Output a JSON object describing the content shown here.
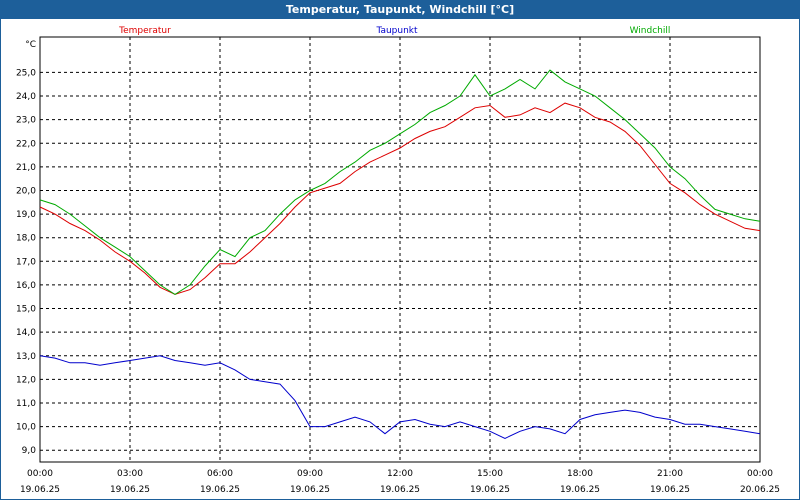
{
  "title": "Temperatur, Taupunkt, Windchill [°C]",
  "chart_data": {
    "type": "line",
    "title": "Temperatur, Taupunkt, Windchill [°C]",
    "ylabel": "°C",
    "xlabel": "",
    "ylim": [
      8.5,
      26.5
    ],
    "yticks": [
      "9,0",
      "10,0",
      "11,0",
      "12,0",
      "13,0",
      "14,0",
      "15,0",
      "16,0",
      "17,0",
      "18,0",
      "19,0",
      "20,0",
      "21,0",
      "22,0",
      "23,0",
      "24,0",
      "25,0"
    ],
    "xlim": [
      0,
      24
    ],
    "xticks": [
      {
        "time": "00:00",
        "date": "19.06.25"
      },
      {
        "time": "03:00",
        "date": "19.06.25"
      },
      {
        "time": "06:00",
        "date": "19.06.25"
      },
      {
        "time": "09:00",
        "date": "19.06.25"
      },
      {
        "time": "12:00",
        "date": "19.06.25"
      },
      {
        "time": "15:00",
        "date": "19.06.25"
      },
      {
        "time": "18:00",
        "date": "19.06.25"
      },
      {
        "time": "21:00",
        "date": "19.06.25"
      },
      {
        "time": "00:00",
        "date": "20.06.25"
      }
    ],
    "grid": true,
    "legend_position": "top",
    "x_hours": [
      0,
      0.5,
      1,
      1.5,
      2,
      2.5,
      3,
      3.5,
      4,
      4.5,
      5,
      5.5,
      6,
      6.5,
      7,
      7.5,
      8,
      8.5,
      9,
      9.5,
      10,
      10.5,
      11,
      11.5,
      12,
      12.5,
      13,
      13.5,
      14,
      14.5,
      15,
      15.5,
      16,
      16.5,
      17,
      17.5,
      18,
      18.5,
      19,
      19.5,
      20,
      20.5,
      21,
      21.5,
      22,
      22.5,
      23,
      23.5,
      24
    ],
    "series": [
      {
        "name": "Temperatur",
        "color": "#dd0000",
        "values": [
          19.3,
          19.0,
          18.6,
          18.3,
          17.9,
          17.4,
          17.0,
          16.5,
          15.9,
          15.6,
          15.8,
          16.3,
          16.9,
          16.9,
          17.4,
          18.0,
          18.6,
          19.3,
          19.9,
          20.1,
          20.3,
          20.8,
          21.2,
          21.5,
          21.8,
          22.2,
          22.5,
          22.7,
          23.1,
          23.5,
          23.6,
          23.1,
          23.2,
          23.5,
          23.3,
          23.7,
          23.5,
          23.1,
          22.9,
          22.5,
          21.9,
          21.1,
          20.3,
          19.9,
          19.4,
          19.0,
          18.7,
          18.4,
          18.3
        ]
      },
      {
        "name": "Taupunkt",
        "color": "#0000cc",
        "values": [
          13.0,
          12.9,
          12.7,
          12.7,
          12.6,
          12.7,
          12.8,
          12.9,
          13.0,
          12.8,
          12.7,
          12.6,
          12.7,
          12.4,
          12.0,
          11.9,
          11.8,
          11.1,
          10.0,
          10.0,
          10.2,
          10.4,
          10.2,
          9.7,
          10.2,
          10.3,
          10.1,
          10.0,
          10.2,
          10.0,
          9.8,
          9.5,
          9.8,
          10.0,
          9.9,
          9.7,
          10.3,
          10.5,
          10.6,
          10.7,
          10.6,
          10.4,
          10.3,
          10.1,
          10.1,
          10.0,
          9.9,
          9.8,
          9.7
        ]
      },
      {
        "name": "Windchill",
        "color": "#00aa00",
        "values": [
          19.6,
          19.4,
          19.0,
          18.5,
          18.0,
          17.6,
          17.2,
          16.6,
          16.0,
          15.6,
          16.0,
          16.8,
          17.5,
          17.2,
          18.0,
          18.3,
          19.0,
          19.6,
          20.0,
          20.3,
          20.8,
          21.2,
          21.7,
          22.0,
          22.4,
          22.8,
          23.3,
          23.6,
          24.0,
          24.9,
          24.0,
          24.3,
          24.7,
          24.3,
          25.1,
          24.6,
          24.3,
          24.0,
          23.5,
          23.0,
          22.4,
          21.8,
          21.0,
          20.5,
          19.8,
          19.2,
          19.0,
          18.8,
          18.7
        ]
      }
    ]
  }
}
